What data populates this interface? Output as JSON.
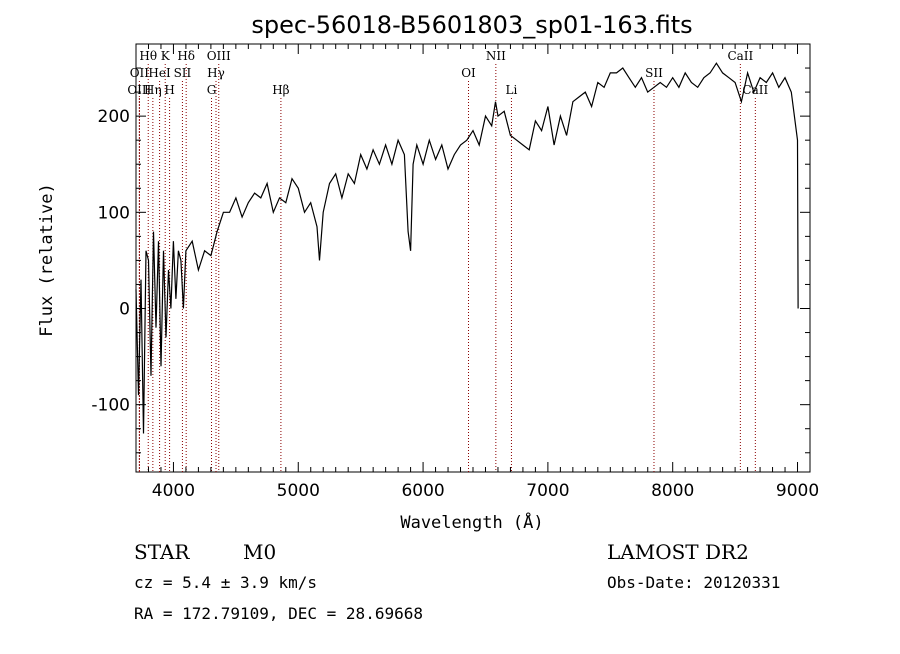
{
  "chart_data": {
    "type": "line",
    "title": "spec-56018-B5601803_sp01-163.fits",
    "xlabel": "Wavelength (Å)",
    "ylabel": "Flux (relative)",
    "xlim": [
      3700,
      9100
    ],
    "ylim": [
      -170,
      275
    ],
    "x_ticks": [
      4000,
      5000,
      6000,
      7000,
      8000,
      9000
    ],
    "y_ticks": [
      -100,
      0,
      100,
      200
    ],
    "series": [
      {
        "values": [
          [
            3700,
            20
          ],
          [
            3720,
            -90
          ],
          [
            3740,
            30
          ],
          [
            3760,
            -130
          ],
          [
            3780,
            60
          ],
          [
            3800,
            50
          ],
          [
            3820,
            -70
          ],
          [
            3840,
            80
          ],
          [
            3860,
            -20
          ],
          [
            3880,
            70
          ],
          [
            3900,
            -60
          ],
          [
            3920,
            60
          ],
          [
            3940,
            -30
          ],
          [
            3960,
            40
          ],
          [
            3980,
            0
          ],
          [
            4000,
            70
          ],
          [
            4020,
            10
          ],
          [
            4040,
            60
          ],
          [
            4060,
            50
          ],
          [
            4080,
            0
          ],
          [
            4100,
            60
          ],
          [
            4150,
            70
          ],
          [
            4200,
            40
          ],
          [
            4250,
            60
          ],
          [
            4300,
            55
          ],
          [
            4350,
            80
          ],
          [
            4400,
            100
          ],
          [
            4450,
            100
          ],
          [
            4500,
            115
          ],
          [
            4550,
            95
          ],
          [
            4600,
            110
          ],
          [
            4650,
            120
          ],
          [
            4700,
            115
          ],
          [
            4750,
            130
          ],
          [
            4800,
            100
          ],
          [
            4850,
            115
          ],
          [
            4900,
            110
          ],
          [
            4950,
            135
          ],
          [
            5000,
            125
          ],
          [
            5050,
            100
          ],
          [
            5100,
            110
          ],
          [
            5150,
            85
          ],
          [
            5170,
            50
          ],
          [
            5200,
            100
          ],
          [
            5250,
            130
          ],
          [
            5300,
            140
          ],
          [
            5350,
            115
          ],
          [
            5400,
            140
          ],
          [
            5450,
            130
          ],
          [
            5500,
            160
          ],
          [
            5550,
            145
          ],
          [
            5600,
            165
          ],
          [
            5650,
            150
          ],
          [
            5700,
            170
          ],
          [
            5750,
            150
          ],
          [
            5800,
            175
          ],
          [
            5850,
            160
          ],
          [
            5880,
            80
          ],
          [
            5900,
            60
          ],
          [
            5920,
            150
          ],
          [
            5950,
            170
          ],
          [
            6000,
            150
          ],
          [
            6050,
            175
          ],
          [
            6100,
            155
          ],
          [
            6150,
            170
          ],
          [
            6200,
            145
          ],
          [
            6250,
            160
          ],
          [
            6300,
            170
          ],
          [
            6350,
            175
          ],
          [
            6400,
            185
          ],
          [
            6450,
            170
          ],
          [
            6500,
            200
          ],
          [
            6550,
            190
          ],
          [
            6580,
            215
          ],
          [
            6600,
            200
          ],
          [
            6650,
            205
          ],
          [
            6700,
            180
          ],
          [
            6750,
            175
          ],
          [
            6800,
            170
          ],
          [
            6850,
            165
          ],
          [
            6900,
            195
          ],
          [
            6950,
            185
          ],
          [
            7000,
            210
          ],
          [
            7050,
            170
          ],
          [
            7100,
            200
          ],
          [
            7150,
            180
          ],
          [
            7200,
            215
          ],
          [
            7250,
            220
          ],
          [
            7300,
            225
          ],
          [
            7350,
            210
          ],
          [
            7400,
            235
          ],
          [
            7450,
            230
          ],
          [
            7500,
            245
          ],
          [
            7550,
            245
          ],
          [
            7600,
            250
          ],
          [
            7650,
            240
          ],
          [
            7700,
            230
          ],
          [
            7750,
            240
          ],
          [
            7800,
            225
          ],
          [
            7850,
            230
          ],
          [
            7900,
            235
          ],
          [
            7950,
            230
          ],
          [
            8000,
            240
          ],
          [
            8050,
            230
          ],
          [
            8100,
            245
          ],
          [
            8150,
            235
          ],
          [
            8200,
            230
          ],
          [
            8250,
            240
          ],
          [
            8300,
            245
          ],
          [
            8350,
            255
          ],
          [
            8400,
            245
          ],
          [
            8450,
            240
          ],
          [
            8500,
            235
          ],
          [
            8550,
            215
          ],
          [
            8600,
            245
          ],
          [
            8650,
            225
          ],
          [
            8700,
            240
          ],
          [
            8750,
            235
          ],
          [
            8800,
            245
          ],
          [
            8850,
            230
          ],
          [
            8900,
            240
          ],
          [
            8950,
            225
          ],
          [
            9000,
            175
          ],
          [
            9005,
            0
          ]
        ]
      }
    ],
    "lines": [
      {
        "label": "Hθ",
        "x": 3798,
        "row": 1
      },
      {
        "label": "OII",
        "x": 3727,
        "row": 2
      },
      {
        "label": "OIII",
        "x": 3727,
        "row": 3
      },
      {
        "label": "Hη",
        "x": 3835,
        "row": 3
      },
      {
        "label": "HeI",
        "x": 3889,
        "row": 2
      },
      {
        "label": "K",
        "x": 3934,
        "row": 1
      },
      {
        "label": "H",
        "x": 3969,
        "row": 3
      },
      {
        "label": "SII",
        "x": 4072,
        "row": 2
      },
      {
        "label": "Hδ",
        "x": 4102,
        "row": 1
      },
      {
        "label": "G",
        "x": 4305,
        "row": 3
      },
      {
        "label": "OIII",
        "x": 4363,
        "row": 1
      },
      {
        "label": "Hγ",
        "x": 4341,
        "row": 2
      },
      {
        "label": "Hβ",
        "x": 4861,
        "row": 3
      },
      {
        "label": "OI",
        "x": 6364,
        "row": 2
      },
      {
        "label": "NII",
        "x": 6583,
        "row": 1
      },
      {
        "label": "Li",
        "x": 6708,
        "row": 3
      },
      {
        "label": "SII",
        "x": 7850,
        "row": 2
      },
      {
        "label": "CaII",
        "x": 8542,
        "row": 1
      },
      {
        "label": "CaII",
        "x": 8662,
        "row": 3
      }
    ]
  },
  "info": {
    "object_class": "STAR",
    "subclass": "M0",
    "survey": "LAMOST DR2",
    "cz": "cz = 5.4 ± 3.9 km/s",
    "obs_date": "Obs-Date: 20120331",
    "coords": "RA = 172.79109, DEC =  28.69668"
  },
  "colors": {
    "line_marker": "#8b0000",
    "spectrum": "#000000"
  }
}
